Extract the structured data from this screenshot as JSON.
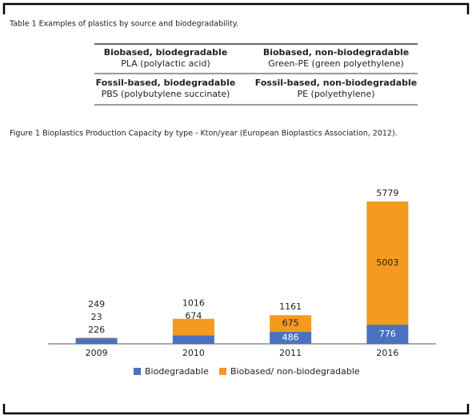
{
  "table": {
    "caption": "Table 1 Examples of plastics by source and biodegradability.",
    "rows": [
      [
        {
          "head": "Biobased, biodegradable",
          "text": "PLA (polylactic acid)"
        },
        {
          "head": "Biobased, non-biodegradable",
          "text": "Green-PE (green polyethylene)"
        }
      ],
      [
        {
          "head": "Fossil-based, biodegradable",
          "text": "PBS (polybutylene succinate)"
        },
        {
          "head": "Fossil-based, non-biodegradable",
          "text": "PE (polyethylene)"
        }
      ]
    ]
  },
  "chart_data": {
    "type": "stacked-bar",
    "title": "Figure 1 Bioplastics Production Capacity by type - Kton/year (European Bioplastics Association, 2012).",
    "categories": [
      "2009",
      "2010",
      "2011",
      "2016"
    ],
    "series": [
      {
        "name": "Biodegradable",
        "color": "#4a72c0",
        "values": [
          226,
          342,
          486,
          776
        ]
      },
      {
        "name": "Biobased/ non-biodegradable",
        "color": "#f39a1f",
        "values": [
          23,
          674,
          675,
          5003
        ]
      }
    ],
    "totals": [
      249,
      1016,
      1161,
      5779
    ]
  }
}
